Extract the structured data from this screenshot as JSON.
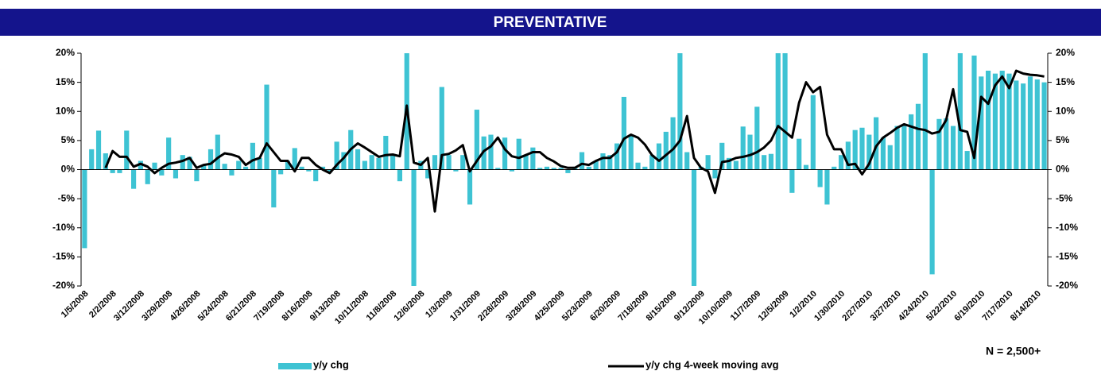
{
  "chart_data": {
    "type": "bar-line",
    "title": "PREVENTATIVE",
    "annotation": "N = 2,500+",
    "categories": [
      "1/5/2008",
      null,
      null,
      null,
      "2/2/2008",
      null,
      null,
      null,
      "3/12/2008",
      null,
      null,
      null,
      "3/29/2008",
      null,
      null,
      null,
      "4/26/2008",
      null,
      null,
      null,
      "5/24/2008",
      null,
      null,
      null,
      "6/21/2008",
      null,
      null,
      null,
      "7/19/2008",
      null,
      null,
      null,
      "8/16/2008",
      null,
      null,
      null,
      "9/13/2008",
      null,
      null,
      null,
      "10/11/2008",
      null,
      null,
      null,
      "11/8/2008",
      null,
      null,
      null,
      "12/6/2008",
      null,
      null,
      null,
      "1/3/2009",
      null,
      null,
      null,
      "1/31/2009",
      null,
      null,
      null,
      "2/28/2009",
      null,
      null,
      null,
      "3/28/2009",
      null,
      null,
      null,
      "4/25/2009",
      null,
      null,
      null,
      "5/23/2009",
      null,
      null,
      null,
      "6/20/2009",
      null,
      null,
      null,
      "7/18/2009",
      null,
      null,
      null,
      "8/15/2009",
      null,
      null,
      null,
      "9/12/2009",
      null,
      null,
      null,
      "10/10/2009",
      null,
      null,
      null,
      "11/7/2009",
      null,
      null,
      null,
      "12/5/2009",
      null,
      null,
      null,
      "1/2/2010",
      null,
      null,
      null,
      "1/30/2010",
      null,
      null,
      null,
      "2/27/2010",
      null,
      null,
      null,
      "3/27/2010",
      null,
      null,
      null,
      "4/24/2010",
      null,
      null,
      null,
      "5/22/2010",
      null,
      null,
      null,
      "6/19/2010",
      null,
      null,
      null,
      "7/17/2010",
      null,
      null,
      null,
      "8/14/2010",
      null
    ],
    "series": [
      {
        "name": "y/y chg",
        "kind": "bar",
        "color": "#3ec3d3",
        "values": [
          -13.5,
          3.5,
          6.7,
          2.8,
          -0.6,
          -0.6,
          6.7,
          -3.3,
          1.5,
          -2.5,
          1.2,
          -1.0,
          5.5,
          -1.5,
          2.5,
          2.2,
          -2.0,
          0.8,
          3.5,
          6.0,
          1.0,
          -1.0,
          1.5,
          0.5,
          4.6,
          2.0,
          14.6,
          -6.5,
          -0.8,
          1.5,
          3.7,
          0.5,
          -0.3,
          -2.0,
          0.5,
          -0.5,
          4.8,
          3.0,
          6.8,
          3.5,
          1.5,
          2.5,
          2.0,
          5.8,
          2.5,
          -2.0,
          20,
          -20,
          1.5,
          -1.5,
          2.5,
          14.2,
          2.5,
          -0.3,
          2.5,
          -6.0,
          10.3,
          5.7,
          6.0,
          0.3,
          5.5,
          -0.3,
          5.3,
          2.5,
          3.8,
          0.3,
          0.5,
          0.3,
          0.3,
          -0.6,
          0.5,
          3.0,
          0.5,
          1.5,
          2.8,
          2.5,
          4.5,
          12.5,
          6.0,
          1.2,
          0.5,
          2.5,
          4.5,
          6.5,
          9.0,
          20,
          3.0,
          -20,
          0.5,
          2.5,
          -1.5,
          4.6,
          2.0,
          1.5,
          7.4,
          6.0,
          10.8,
          2.5,
          2.7,
          20,
          20,
          -4.0,
          5.3,
          0.8,
          12.8,
          -3.0,
          -6.0,
          0.5,
          2.5,
          4.8,
          6.8,
          7.2,
          6.0,
          9.0,
          5.5,
          4.2,
          7.5,
          7.5,
          9.5,
          11.3,
          20,
          -18,
          8.7,
          8.8,
          7.5,
          20,
          3.2,
          19.6,
          16.0,
          17.0,
          16.5,
          17.0,
          16.5,
          15.3,
          14.8,
          16.0,
          15.5,
          15.0
        ]
      },
      {
        "name": "y/y chg 4-week moving avg",
        "kind": "line",
        "color": "#000000",
        "values": [
          null,
          null,
          null,
          0.3,
          3.2,
          2.2,
          2.2,
          0.5,
          1.0,
          0.5,
          -0.6,
          0.3,
          1.0,
          1.2,
          1.5,
          2.0,
          0.3,
          0.8,
          1.0,
          2.0,
          2.8,
          2.6,
          2.2,
          0.8,
          1.6,
          2.0,
          4.5,
          3.0,
          1.5,
          1.5,
          -0.3,
          2.0,
          2.0,
          0.8,
          0.0,
          -0.6,
          0.8,
          2.0,
          3.5,
          4.5,
          3.8,
          3.0,
          2.2,
          2.5,
          2.6,
          2.3,
          11.0,
          1.2,
          0.8,
          2.0,
          -7.2,
          2.5,
          2.7,
          3.3,
          4.2,
          -0.3,
          1.5,
          3.2,
          4.0,
          5.5,
          3.5,
          2.3,
          2.0,
          2.5,
          3.0,
          3.0,
          2.0,
          1.4,
          0.6,
          0.3,
          0.3,
          1.0,
          0.8,
          1.5,
          2.0,
          2.0,
          3.0,
          5.3,
          6.0,
          5.5,
          4.3,
          2.5,
          1.5,
          2.5,
          3.5,
          5.0,
          9.2,
          2.0,
          0.3,
          -0.3,
          -4.0,
          1.3,
          1.5,
          2.0,
          2.2,
          2.5,
          3.0,
          3.8,
          5.0,
          7.5,
          6.5,
          5.5,
          11.5,
          15.0,
          13.3,
          14.2,
          6.0,
          3.5,
          3.5,
          0.8,
          1.0,
          -0.8,
          1.0,
          4.0,
          5.5,
          6.3,
          7.2,
          7.8,
          7.4,
          7.0,
          6.8,
          6.2,
          6.5,
          8.5,
          13.8,
          6.8,
          6.5,
          2.0,
          12.5,
          11.3,
          14.5,
          16.0,
          14.0,
          17.0,
          16.5,
          16.3,
          16.2,
          16.0
        ]
      }
    ],
    "ylim": [
      -20,
      20
    ],
    "yticks": [
      {
        "value": -20,
        "label": "-20%"
      },
      {
        "value": -15,
        "label": "-15%"
      },
      {
        "value": -10,
        "label": "-10%"
      },
      {
        "value": -5,
        "label": "-5%"
      },
      {
        "value": 0,
        "label": "0%"
      },
      {
        "value": 5,
        "label": "5%"
      },
      {
        "value": 10,
        "label": "10%"
      },
      {
        "value": 15,
        "label": "15%"
      },
      {
        "value": 20,
        "label": "20%"
      }
    ],
    "y2lim": [
      -20,
      20
    ],
    "y2ticks": [
      {
        "value": -20,
        "label": "-20%"
      },
      {
        "value": -15,
        "label": "-15%"
      },
      {
        "value": -10,
        "label": "-10%"
      },
      {
        "value": -5,
        "label": "-5%"
      },
      {
        "value": 0,
        "label": "0%"
      },
      {
        "value": 5,
        "label": "5%"
      },
      {
        "value": 10,
        "label": "10%"
      },
      {
        "value": 15,
        "label": "15%"
      },
      {
        "value": 20,
        "label": "20%"
      }
    ]
  }
}
